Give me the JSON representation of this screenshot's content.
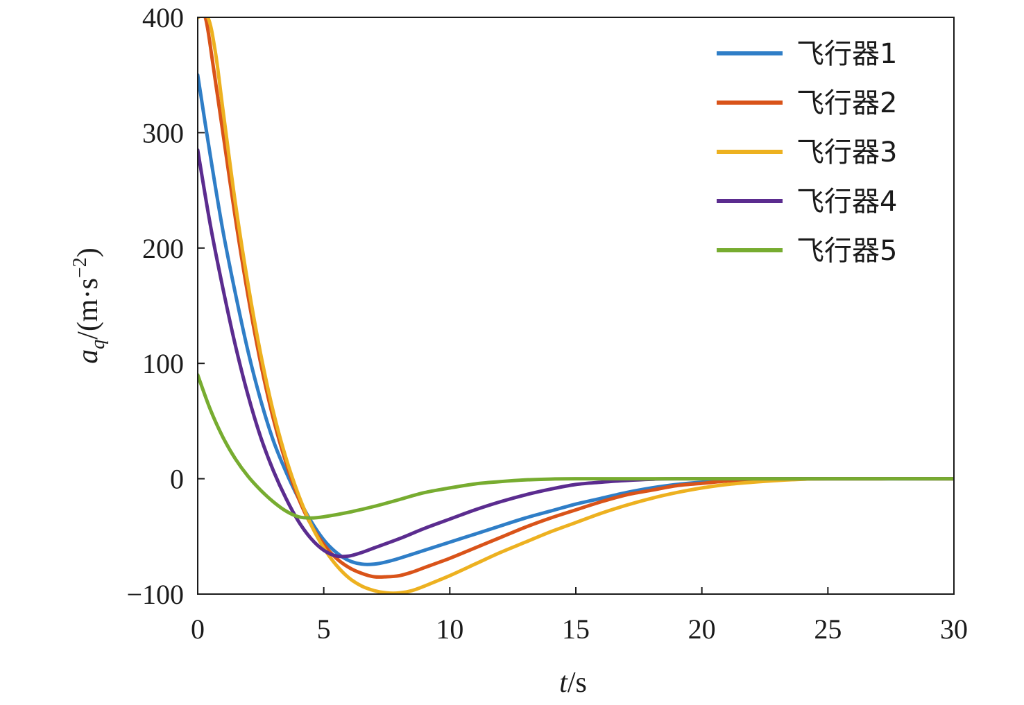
{
  "chart_data": {
    "type": "line",
    "xlabel": "t/s",
    "ylabel": "a_q/(m·s^-2)",
    "xlim": [
      0,
      30
    ],
    "ylim": [
      -100,
      400
    ],
    "x_ticks": [
      0,
      5,
      10,
      15,
      20,
      25,
      30
    ],
    "y_ticks": [
      -100,
      0,
      100,
      200,
      300,
      400
    ],
    "x_tick_labels": [
      "0",
      "5",
      "10",
      "15",
      "20",
      "25",
      "30"
    ],
    "y_tick_labels": [
      "−100",
      "0",
      "100",
      "200",
      "300",
      "400"
    ],
    "grid": false,
    "legend_position": "top-right",
    "series": [
      {
        "name": "飞行器1",
        "color": "#2f7ec7",
        "points": [
          [
            0,
            350
          ],
          [
            0.5,
            280
          ],
          [
            1,
            215
          ],
          [
            1.5,
            160
          ],
          [
            2,
            110
          ],
          [
            2.5,
            68
          ],
          [
            3,
            33
          ],
          [
            3.5,
            6
          ],
          [
            4,
            -17
          ],
          [
            4.5,
            -37
          ],
          [
            5,
            -53
          ],
          [
            5.5,
            -64
          ],
          [
            6,
            -71
          ],
          [
            6.5,
            -74
          ],
          [
            7,
            -74
          ],
          [
            7.5,
            -72
          ],
          [
            8,
            -69
          ],
          [
            9,
            -62
          ],
          [
            10,
            -55
          ],
          [
            11,
            -48
          ],
          [
            12,
            -41
          ],
          [
            13,
            -34
          ],
          [
            14,
            -28
          ],
          [
            15,
            -22
          ],
          [
            16,
            -17
          ],
          [
            17,
            -12
          ],
          [
            18,
            -8
          ],
          [
            19,
            -5
          ],
          [
            20,
            -3
          ],
          [
            21,
            -1.5
          ],
          [
            22,
            -0.5
          ],
          [
            23,
            0
          ],
          [
            25,
            0
          ],
          [
            30,
            0
          ]
        ]
      },
      {
        "name": "飞行器2",
        "color": "#d95319",
        "points": [
          [
            0,
            400
          ],
          [
            0.3,
            400
          ],
          [
            0.6,
            360
          ],
          [
            1,
            300
          ],
          [
            1.5,
            225
          ],
          [
            2,
            158
          ],
          [
            2.5,
            100
          ],
          [
            3,
            52
          ],
          [
            3.5,
            14
          ],
          [
            4,
            -17
          ],
          [
            4.5,
            -40
          ],
          [
            5,
            -57
          ],
          [
            5.5,
            -69
          ],
          [
            6,
            -77
          ],
          [
            6.5,
            -82
          ],
          [
            7,
            -85
          ],
          [
            7.5,
            -85
          ],
          [
            8,
            -84
          ],
          [
            8.5,
            -81
          ],
          [
            9,
            -77
          ],
          [
            10,
            -69
          ],
          [
            11,
            -60
          ],
          [
            12,
            -51
          ],
          [
            13,
            -42
          ],
          [
            14,
            -34
          ],
          [
            15,
            -27
          ],
          [
            16,
            -20
          ],
          [
            17,
            -14
          ],
          [
            18,
            -10
          ],
          [
            19,
            -6
          ],
          [
            20,
            -4
          ],
          [
            21,
            -2
          ],
          [
            22,
            -1
          ],
          [
            23,
            -0.3
          ],
          [
            25,
            0
          ],
          [
            30,
            0
          ]
        ]
      },
      {
        "name": "飞行器3",
        "color": "#edb120",
        "points": [
          [
            0,
            400
          ],
          [
            0.4,
            400
          ],
          [
            0.7,
            370
          ],
          [
            1,
            320
          ],
          [
            1.5,
            238
          ],
          [
            2,
            168
          ],
          [
            2.5,
            108
          ],
          [
            3,
            58
          ],
          [
            3.5,
            18
          ],
          [
            4,
            -14
          ],
          [
            4.5,
            -40
          ],
          [
            5,
            -60
          ],
          [
            5.5,
            -75
          ],
          [
            6,
            -86
          ],
          [
            6.5,
            -93
          ],
          [
            7,
            -97
          ],
          [
            7.5,
            -99
          ],
          [
            8,
            -99
          ],
          [
            8.5,
            -97
          ],
          [
            9,
            -93
          ],
          [
            10,
            -84
          ],
          [
            11,
            -74
          ],
          [
            12,
            -64
          ],
          [
            13,
            -55
          ],
          [
            14,
            -46
          ],
          [
            15,
            -38
          ],
          [
            16,
            -30
          ],
          [
            17,
            -23
          ],
          [
            18,
            -17
          ],
          [
            19,
            -12
          ],
          [
            20,
            -8
          ],
          [
            21,
            -5
          ],
          [
            22,
            -3
          ],
          [
            23,
            -1.5
          ],
          [
            24,
            -0.5
          ],
          [
            25,
            0
          ],
          [
            30,
            0
          ]
        ]
      },
      {
        "name": "飞行器4",
        "color": "#5b2c8f",
        "points": [
          [
            0,
            285
          ],
          [
            0.5,
            220
          ],
          [
            1,
            165
          ],
          [
            1.5,
            115
          ],
          [
            2,
            72
          ],
          [
            2.5,
            36
          ],
          [
            3,
            7
          ],
          [
            3.5,
            -17
          ],
          [
            4,
            -37
          ],
          [
            4.5,
            -52
          ],
          [
            5,
            -62
          ],
          [
            5.5,
            -67
          ],
          [
            6,
            -67
          ],
          [
            6.5,
            -64
          ],
          [
            7,
            -60
          ],
          [
            8,
            -52
          ],
          [
            9,
            -43
          ],
          [
            10,
            -35
          ],
          [
            11,
            -27
          ],
          [
            12,
            -20
          ],
          [
            13,
            -14
          ],
          [
            14,
            -9
          ],
          [
            15,
            -5
          ],
          [
            16,
            -3
          ],
          [
            17,
            -1.5
          ],
          [
            18,
            -0.5
          ],
          [
            19,
            0
          ],
          [
            25,
            0
          ],
          [
            30,
            0
          ]
        ]
      },
      {
        "name": "飞行器5",
        "color": "#77ac30",
        "points": [
          [
            0,
            90
          ],
          [
            0.5,
            60
          ],
          [
            1,
            36
          ],
          [
            1.5,
            17
          ],
          [
            2,
            2
          ],
          [
            2.5,
            -10
          ],
          [
            3,
            -20
          ],
          [
            3.5,
            -28
          ],
          [
            4,
            -33
          ],
          [
            4.5,
            -34
          ],
          [
            5,
            -33
          ],
          [
            6,
            -29
          ],
          [
            7,
            -24
          ],
          [
            8,
            -18
          ],
          [
            9,
            -12
          ],
          [
            10,
            -8
          ],
          [
            11,
            -4.5
          ],
          [
            12,
            -2.5
          ],
          [
            13,
            -1
          ],
          [
            14,
            -0.3
          ],
          [
            15,
            0
          ],
          [
            20,
            0
          ],
          [
            25,
            0
          ],
          [
            30,
            0
          ]
        ]
      }
    ]
  }
}
